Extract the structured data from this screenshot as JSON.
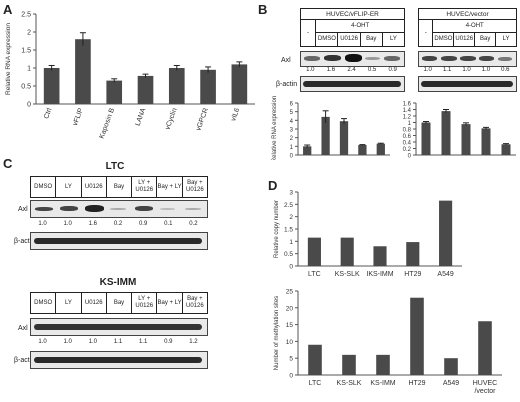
{
  "panels": {
    "A": "A",
    "B": "B",
    "C": "C",
    "D": "D"
  },
  "chart_data": [
    {
      "id": "A",
      "type": "bar",
      "categories": [
        "Ctrl",
        "vFLIP",
        "Kaposin B",
        "LANA",
        "vCyclin",
        "vGPCR",
        "vIL6"
      ],
      "values": [
        1.0,
        1.8,
        0.65,
        0.78,
        1.0,
        0.95,
        1.1
      ],
      "errors": [
        0.07,
        0.18,
        0.05,
        0.05,
        0.07,
        0.08,
        0.07
      ],
      "ylabel": "Relative RNA expression",
      "ylim": [
        0,
        2.5
      ],
      "yticks": [
        "0",
        "0.5",
        "1",
        "1.5",
        "2",
        "2.5"
      ],
      "color": "#4a4a4a"
    },
    {
      "id": "B-left",
      "type": "bar",
      "values": [
        1.0,
        4.4,
        3.9,
        1.15,
        1.3
      ],
      "errors": [
        0.15,
        0.7,
        0.3,
        0.05,
        0.06
      ],
      "ylabel": "Relative RNA expression",
      "ylim": [
        0,
        6
      ],
      "yticks": [
        "0",
        "1",
        "2",
        "3",
        "4",
        "5",
        "6"
      ],
      "color": "#4a4a4a"
    },
    {
      "id": "B-right",
      "type": "bar",
      "values": [
        1.0,
        1.35,
        0.95,
        0.82,
        0.33
      ],
      "errors": [
        0.03,
        0.05,
        0.04,
        0.03,
        0.02
      ],
      "ylim": [
        0,
        1.6
      ],
      "yticks": [
        "0",
        "0.2",
        "0.4",
        "0.6",
        "0.8",
        "1",
        "1.2",
        "1.4",
        "1.6"
      ],
      "color": "#4a4a4a"
    },
    {
      "id": "D-top",
      "type": "bar",
      "categories": [
        "LTC",
        "KS-SLK",
        "IKS-IMM",
        "HT29",
        "A549"
      ],
      "values": [
        1.15,
        1.15,
        0.8,
        0.97,
        2.65
      ],
      "ylabel": "Relative copy number",
      "ylim": [
        0,
        3
      ],
      "yticks": [
        "0",
        "0.5",
        "1",
        "1.5",
        "2",
        "2.5",
        "3"
      ],
      "color": "#4a4a4a"
    },
    {
      "id": "D-bottom",
      "type": "bar",
      "categories": [
        "LTC",
        "KS-SLK",
        "KS-IMM",
        "HT29",
        "A549",
        "HUVEC /vector"
      ],
      "values": [
        9,
        6,
        6,
        23,
        5,
        16
      ],
      "ylabel": "Number of methylation sites",
      "ylim": [
        0,
        25
      ],
      "yticks": [
        "0",
        "5",
        "10",
        "15",
        "20",
        "25"
      ],
      "color": "#4a4a4a"
    }
  ],
  "blots": {
    "B": {
      "left_title": "HUVEC/vFLIP-ER",
      "left_ohtlabel": "4-OHT",
      "left_lanes": [
        "-",
        "DMSO",
        "U0126",
        "Bay",
        "LY"
      ],
      "left_quant": [
        "1.0",
        "1.6",
        "2.4",
        "0.5",
        "0.9"
      ],
      "right_title": "HUVEC/vector",
      "right_ohtlabel": "4-OHT",
      "right_lanes": [
        "-",
        "DMSO",
        "U0126",
        "Bay",
        "LY"
      ],
      "right_quant": [
        "1.0",
        "1.1",
        "1.0",
        "1.0",
        "0.6"
      ],
      "row_axl": "Axl",
      "row_actin": "β-actin"
    },
    "C_top": {
      "title": "LTC",
      "lanes": [
        "DMSO",
        "LY",
        "U0126",
        "Bay",
        "LY + U0126",
        "Bay + LY",
        "Bay + U0126"
      ],
      "quant": [
        "1.0",
        "1.0",
        "1.6",
        "0.2",
        "0.9",
        "0.1",
        "0.2"
      ],
      "row_axl": "Axl",
      "row_actin": "β-actin"
    },
    "C_bottom": {
      "title": "KS-IMM",
      "lanes": [
        "DMSO",
        "LY",
        "U0126",
        "Bay",
        "LY + U0126",
        "Bay + LY",
        "Bay + U0126"
      ],
      "quant": [
        "1.0",
        "1.0",
        "1.0",
        "1.1",
        "1.1",
        "0.9",
        "1.2"
      ],
      "row_axl": "Axl",
      "row_actin": "β-actin"
    }
  }
}
